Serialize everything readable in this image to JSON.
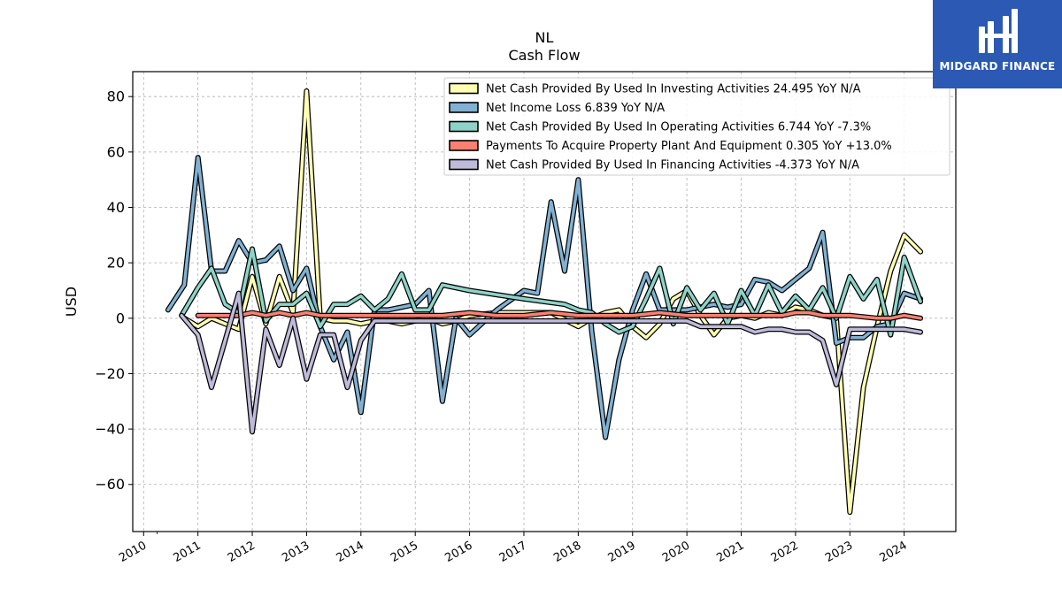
{
  "logo": {
    "text": "MIDGARD FINANCE"
  },
  "chart_data": {
    "type": "line",
    "title": "NL",
    "subtitle": "Cash Flow",
    "ylabel": "USD",
    "xlabel": "",
    "ylim": [
      -77,
      89
    ],
    "xlim": [
      2009.8,
      2024.95
    ],
    "grid": true,
    "legend_position": "top-right",
    "y_ticks": [
      80,
      60,
      40,
      20,
      0,
      -20,
      -40,
      -60
    ],
    "y_tick_labels": [
      "80",
      "60",
      "40",
      "20",
      "0",
      "−20",
      "−40",
      "−60"
    ],
    "x_ticks": [
      2010,
      2011,
      2012,
      2013,
      2014,
      2015,
      2016,
      2017,
      2018,
      2019,
      2020,
      2021,
      2022,
      2023,
      2024
    ],
    "x_tick_labels": [
      "2010",
      "2011",
      "2012",
      "2013",
      "2014",
      "2015",
      "2016",
      "2017",
      "2018",
      "2019",
      "2020",
      "2021",
      "2022",
      "2023",
      "2024"
    ],
    "series": [
      {
        "name": "Net Cash Provided By Used In Investing Activities",
        "legend_label": "Net Cash Provided By Used In Investing Activities  24.495 YoY N/A",
        "color": "#ffffb3",
        "points": [
          [
            2010.75,
            0
          ],
          [
            2011.0,
            -3
          ],
          [
            2011.25,
            0
          ],
          [
            2011.5,
            -2
          ],
          [
            2011.75,
            -4
          ],
          [
            2012.0,
            15
          ],
          [
            2012.25,
            -2
          ],
          [
            2012.5,
            15
          ],
          [
            2012.75,
            2
          ],
          [
            2013.0,
            82
          ],
          [
            2013.25,
            0
          ],
          [
            2013.5,
            -1
          ],
          [
            2013.75,
            -1
          ],
          [
            2014.0,
            -2
          ],
          [
            2014.25,
            -1
          ],
          [
            2014.5,
            -1
          ],
          [
            2014.75,
            -2
          ],
          [
            2015.0,
            -1
          ],
          [
            2015.25,
            0
          ],
          [
            2015.5,
            -2
          ],
          [
            2015.75,
            -1
          ],
          [
            2016.0,
            1
          ],
          [
            2016.5,
            2
          ],
          [
            2017.0,
            2
          ],
          [
            2017.5,
            2
          ],
          [
            2018.0,
            -3
          ],
          [
            2018.25,
            0
          ],
          [
            2018.5,
            2
          ],
          [
            2018.75,
            3
          ],
          [
            2019.0,
            -3
          ],
          [
            2019.25,
            -7
          ],
          [
            2019.5,
            -2
          ],
          [
            2019.75,
            7
          ],
          [
            2020.0,
            10
          ],
          [
            2020.25,
            1
          ],
          [
            2020.5,
            -6
          ],
          [
            2020.75,
            0
          ],
          [
            2021.0,
            1
          ],
          [
            2021.25,
            0
          ],
          [
            2021.5,
            2
          ],
          [
            2021.75,
            1
          ],
          [
            2022.0,
            4
          ],
          [
            2022.25,
            3
          ],
          [
            2022.5,
            1
          ],
          [
            2022.75,
            0
          ],
          [
            2023.0,
            -70
          ],
          [
            2023.25,
            -25
          ],
          [
            2023.5,
            -3
          ],
          [
            2023.75,
            17
          ],
          [
            2024.0,
            30
          ],
          [
            2024.3,
            24
          ]
        ]
      },
      {
        "name": "Net Income Loss",
        "legend_label": "Net Income Loss  6.839 YoY N/A",
        "color": "#80b1d3",
        "points": [
          [
            2010.45,
            3
          ],
          [
            2010.75,
            12
          ],
          [
            2011.0,
            58
          ],
          [
            2011.25,
            17
          ],
          [
            2011.5,
            17
          ],
          [
            2011.75,
            28
          ],
          [
            2012.0,
            20
          ],
          [
            2012.25,
            21
          ],
          [
            2012.5,
            26
          ],
          [
            2012.75,
            10
          ],
          [
            2013.0,
            18
          ],
          [
            2013.25,
            -3
          ],
          [
            2013.5,
            -15
          ],
          [
            2013.75,
            -5
          ],
          [
            2014.0,
            -34
          ],
          [
            2014.25,
            3
          ],
          [
            2014.5,
            3
          ],
          [
            2014.75,
            4
          ],
          [
            2015.0,
            5
          ],
          [
            2015.25,
            10
          ],
          [
            2015.5,
            -30
          ],
          [
            2015.75,
            0
          ],
          [
            2016.0,
            -6
          ],
          [
            2016.5,
            3
          ],
          [
            2017.0,
            10
          ],
          [
            2017.25,
            9
          ],
          [
            2017.5,
            42
          ],
          [
            2017.75,
            17
          ],
          [
            2018.0,
            50
          ],
          [
            2018.25,
            -5
          ],
          [
            2018.5,
            -43
          ],
          [
            2018.75,
            -15
          ],
          [
            2019.0,
            3
          ],
          [
            2019.25,
            16
          ],
          [
            2019.5,
            3
          ],
          [
            2019.75,
            3
          ],
          [
            2020.0,
            3
          ],
          [
            2020.5,
            5
          ],
          [
            2020.75,
            4
          ],
          [
            2021.0,
            5
          ],
          [
            2021.25,
            14
          ],
          [
            2021.5,
            13
          ],
          [
            2021.75,
            10
          ],
          [
            2022.0,
            14
          ],
          [
            2022.25,
            18
          ],
          [
            2022.5,
            31
          ],
          [
            2022.75,
            -9
          ],
          [
            2023.0,
            -7
          ],
          [
            2023.25,
            -7
          ],
          [
            2023.5,
            -3
          ],
          [
            2023.75,
            -2
          ],
          [
            2024.0,
            9
          ],
          [
            2024.3,
            7
          ]
        ]
      },
      {
        "name": "Net Cash Provided By Used In Operating Activities",
        "legend_label": "Net Cash Provided By Used In Operating Activities  6.744 YoY -7.3%",
        "color": "#8dd3c7",
        "points": [
          [
            2010.7,
            1
          ],
          [
            2011.0,
            11
          ],
          [
            2011.25,
            18
          ],
          [
            2011.5,
            5
          ],
          [
            2011.75,
            2
          ],
          [
            2012.0,
            25
          ],
          [
            2012.25,
            -1
          ],
          [
            2012.5,
            5
          ],
          [
            2012.75,
            5
          ],
          [
            2013.0,
            9
          ],
          [
            2013.25,
            -3
          ],
          [
            2013.5,
            5
          ],
          [
            2013.75,
            5
          ],
          [
            2014.0,
            8
          ],
          [
            2014.25,
            3
          ],
          [
            2014.5,
            7
          ],
          [
            2014.75,
            16
          ],
          [
            2015.0,
            3
          ],
          [
            2015.25,
            3
          ],
          [
            2015.5,
            12
          ],
          [
            2016.0,
            10
          ],
          [
            2017.0,
            7
          ],
          [
            2017.75,
            5
          ],
          [
            2018.0,
            3
          ],
          [
            2018.25,
            2
          ],
          [
            2018.5,
            -2
          ],
          [
            2018.75,
            -5
          ],
          [
            2019.0,
            -3
          ],
          [
            2019.25,
            7
          ],
          [
            2019.5,
            18
          ],
          [
            2019.75,
            -2
          ],
          [
            2020.0,
            11
          ],
          [
            2020.25,
            3
          ],
          [
            2020.5,
            9
          ],
          [
            2020.75,
            -2
          ],
          [
            2021.0,
            10
          ],
          [
            2021.25,
            1
          ],
          [
            2021.5,
            12
          ],
          [
            2021.75,
            2
          ],
          [
            2022.0,
            8
          ],
          [
            2022.25,
            3
          ],
          [
            2022.5,
            11
          ],
          [
            2022.75,
            0
          ],
          [
            2023.0,
            15
          ],
          [
            2023.25,
            7
          ],
          [
            2023.5,
            14
          ],
          [
            2023.75,
            -6
          ],
          [
            2024.0,
            22
          ],
          [
            2024.3,
            6
          ]
        ]
      },
      {
        "name": "Payments To Acquire Property Plant And Equipment",
        "legend_label": "Payments To Acquire Property Plant And Equipment  0.305 YoY +13.0%",
        "color": "#fb8072",
        "points": [
          [
            2011.0,
            1
          ],
          [
            2011.5,
            1
          ],
          [
            2011.75,
            1
          ],
          [
            2012.0,
            2
          ],
          [
            2012.25,
            1
          ],
          [
            2012.5,
            2
          ],
          [
            2012.75,
            1
          ],
          [
            2013.0,
            2
          ],
          [
            2013.25,
            1
          ],
          [
            2013.5,
            1
          ],
          [
            2014.0,
            1
          ],
          [
            2014.5,
            1
          ],
          [
            2015.0,
            1
          ],
          [
            2015.5,
            1
          ],
          [
            2016.0,
            2
          ],
          [
            2016.5,
            1
          ],
          [
            2017.0,
            1
          ],
          [
            2017.5,
            2
          ],
          [
            2018.0,
            1
          ],
          [
            2018.5,
            1
          ],
          [
            2019.0,
            1
          ],
          [
            2019.5,
            2
          ],
          [
            2020.0,
            1
          ],
          [
            2020.5,
            1
          ],
          [
            2021.0,
            1
          ],
          [
            2021.5,
            1
          ],
          [
            2021.75,
            1
          ],
          [
            2022.0,
            2
          ],
          [
            2022.25,
            2
          ],
          [
            2022.5,
            1
          ],
          [
            2023.0,
            1
          ],
          [
            2023.5,
            0
          ],
          [
            2023.75,
            0
          ],
          [
            2024.0,
            1
          ],
          [
            2024.3,
            0
          ]
        ]
      },
      {
        "name": "Net Cash Provided By Used In Financing Activities",
        "legend_label": "Net Cash Provided By Used In Financing Activities  -4.373 YoY N/A",
        "color": "#bebada",
        "points": [
          [
            2010.7,
            1
          ],
          [
            2011.0,
            -6
          ],
          [
            2011.25,
            -25
          ],
          [
            2011.5,
            -8
          ],
          [
            2011.75,
            9
          ],
          [
            2012.0,
            -41
          ],
          [
            2012.25,
            -4
          ],
          [
            2012.5,
            -17
          ],
          [
            2012.75,
            0
          ],
          [
            2013.0,
            -22
          ],
          [
            2013.25,
            -6
          ],
          [
            2013.5,
            -6
          ],
          [
            2013.75,
            -25
          ],
          [
            2014.0,
            -8
          ],
          [
            2014.25,
            -1
          ],
          [
            2014.5,
            -1
          ],
          [
            2015.0,
            -1
          ],
          [
            2015.5,
            -1
          ],
          [
            2016.0,
            -1
          ],
          [
            2017.0,
            -1
          ],
          [
            2018.0,
            -1
          ],
          [
            2019.0,
            -1
          ],
          [
            2019.75,
            -1
          ],
          [
            2020.0,
            -1
          ],
          [
            2020.25,
            -3
          ],
          [
            2020.5,
            -3
          ],
          [
            2021.0,
            -3
          ],
          [
            2021.25,
            -5
          ],
          [
            2021.5,
            -4
          ],
          [
            2021.75,
            -4
          ],
          [
            2022.0,
            -5
          ],
          [
            2022.25,
            -5
          ],
          [
            2022.5,
            -8
          ],
          [
            2022.75,
            -24
          ],
          [
            2023.0,
            -4
          ],
          [
            2023.5,
            -4
          ],
          [
            2024.0,
            -4
          ],
          [
            2024.3,
            -5
          ]
        ]
      }
    ]
  }
}
